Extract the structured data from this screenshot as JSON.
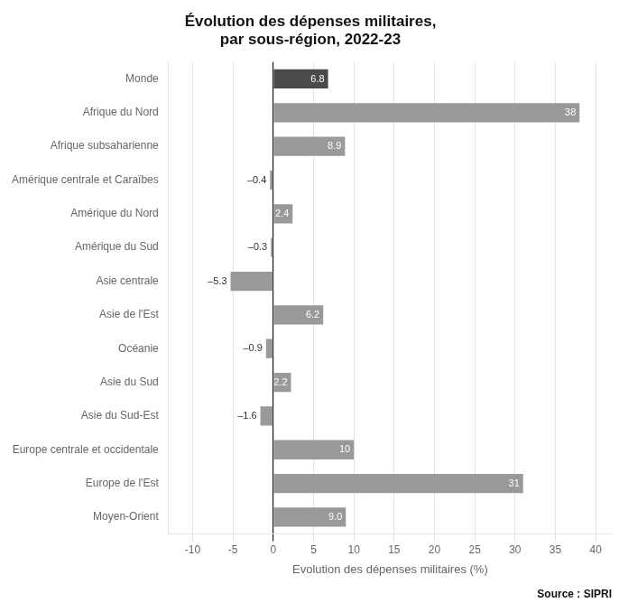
{
  "chart_data": {
    "type": "bar",
    "orientation": "horizontal",
    "title": "Évolution des dépenses militaires,\npar sous-région, 2022-23",
    "categories": [
      "Monde",
      "Afrique du Nord",
      "Afrique subsaharienne",
      "Amérique centrale et Caraïbes",
      "Amérique du Nord",
      "Amérique du Sud",
      "Asie centrale",
      "Asie de l'Est",
      "Océanie",
      "Asie du Sud",
      "Asie du Sud-Est",
      "Europe centrale et occidentale",
      "Europe de l'Est",
      "Moyen-Orient"
    ],
    "values": [
      6.8,
      38,
      8.9,
      -0.4,
      2.4,
      -0.3,
      -5.3,
      6.2,
      -0.9,
      2.2,
      -1.6,
      10,
      31,
      9.0
    ],
    "value_labels": [
      "6.8",
      "38",
      "8.9",
      "–0.4",
      "2.4",
      "–0.3",
      "–5.3",
      "6.2",
      "–0.9",
      "2.2",
      "–1.6",
      "10",
      "31",
      "9.0"
    ],
    "data_labels": true,
    "colors": [
      "#4a4a4a",
      "#999999",
      "#999999",
      "#999999",
      "#999999",
      "#999999",
      "#999999",
      "#999999",
      "#999999",
      "#999999",
      "#999999",
      "#999999",
      "#999999",
      "#999999"
    ],
    "xlabel": "Evolution des dépenses militaires (%)",
    "xlim": [
      -13,
      42
    ],
    "xticks": [
      -10,
      -5,
      0,
      5,
      10,
      15,
      20,
      25,
      30,
      35,
      40
    ],
    "grid": true,
    "annotations": [
      "Source : SIPRI"
    ]
  }
}
